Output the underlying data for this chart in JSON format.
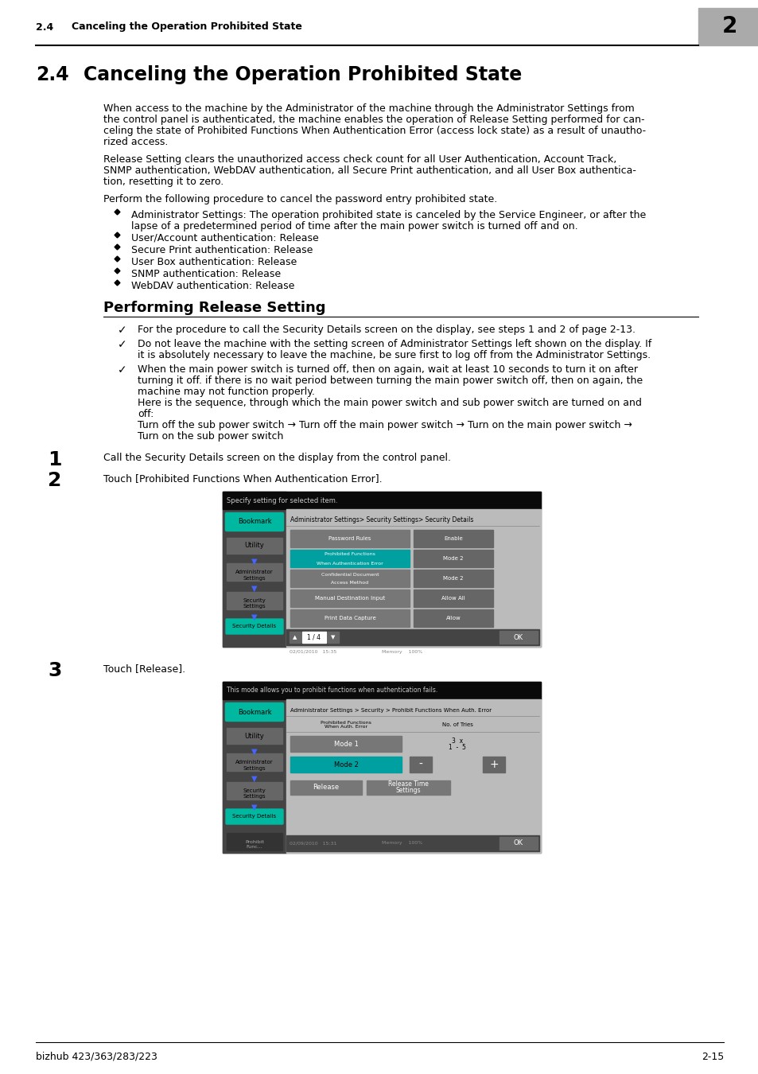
{
  "page_bg": "#ffffff",
  "header_num": "2.4",
  "header_title": "Canceling the Operation Prohibited State",
  "chapter_num": "2",
  "title_num": "2.4",
  "title_text": "Canceling the Operation Prohibited State",
  "para1_lines": [
    "When access to the machine by the Administrator of the machine through the Administrator Settings from",
    "the control panel is authenticated, the machine enables the operation of Release Setting performed for can-",
    "celing the state of Prohibited Functions When Authentication Error (access lock state) as a result of unautho-",
    "rized access."
  ],
  "para2_lines": [
    "Release Setting clears the unauthorized access check count for all User Authentication, Account Track,",
    "SNMP authentication, WebDAV authentication, all Secure Print authentication, and all User Box authentica-",
    "tion, resetting it to zero."
  ],
  "para3": "Perform the following procedure to cancel the password entry prohibited state.",
  "bullet_items": [
    [
      "Administrator Settings: The operation prohibited state is canceled by the Service Engineer, or after the",
      "lapse of a predetermined period of time after the main power switch is turned off and on."
    ],
    [
      "User/Account authentication: Release"
    ],
    [
      "Secure Print authentication: Release"
    ],
    [
      "User Box authentication: Release"
    ],
    [
      "SNMP authentication: Release"
    ],
    [
      "WebDAV authentication: Release"
    ]
  ],
  "subsection": "Performing Release Setting",
  "check_items": [
    [
      "For the procedure to call the Security Details screen on the display, see steps 1 and 2 of page 2-13."
    ],
    [
      "Do not leave the machine with the setting screen of Administrator Settings left shown on the display. If",
      "it is absolutely necessary to leave the machine, be sure first to log off from the Administrator Settings."
    ],
    [
      "When the main power switch is turned off, then on again, wait at least 10 seconds to turn it on after",
      "turning it off. if there is no wait period between turning the main power switch off, then on again, the",
      "machine may not function properly.",
      "Here is the sequence, through which the main power switch and sub power switch are turned on and",
      "off:",
      "Turn off the sub power switch → Turn off the main power switch → Turn on the main power switch →",
      "Turn on the sub power switch"
    ]
  ],
  "step1_text": "Call the Security Details screen on the display from the control panel.",
  "step2_text": "Touch [Prohibited Functions When Authentication Error].",
  "step3_text": "Touch [Release].",
  "footer_left": "bizhub 423/363/283/223",
  "footer_right": "2-15",
  "teal": "#00b8a0",
  "dark_teal": "#007070",
  "blue_arrow": "#4040cc",
  "btn_gray": "#808080",
  "btn_light": "#999999",
  "panel_dark": "#3a3a3a",
  "panel_med": "#505050",
  "content_bg": "#bbbbbb",
  "top_bar": "#111111",
  "row_bg": "#888888",
  "row_hl": "#00a0a0"
}
